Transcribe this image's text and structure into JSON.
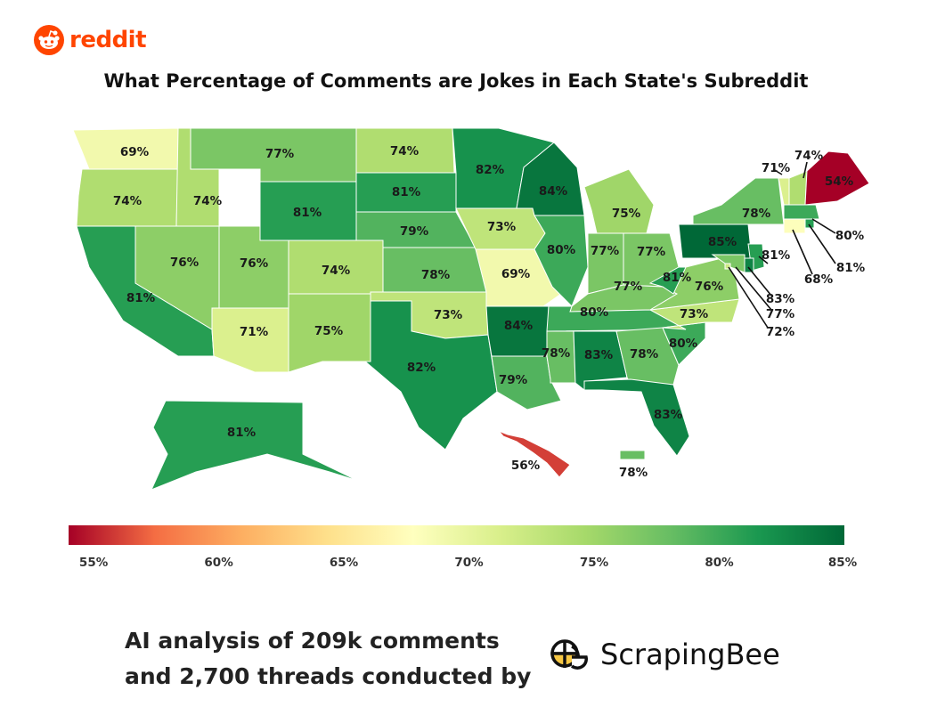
{
  "brand": {
    "name": "reddit"
  },
  "title": "What Percentage of Comments are Jokes in Each State's Subreddit",
  "chart_data": {
    "type": "choropleth",
    "title": "What Percentage of Comments are Jokes in Each State's Subreddit",
    "unit": "%",
    "scale": {
      "min": 54,
      "max": 85,
      "colors": [
        "#a50026",
        "#f46d43",
        "#fdae61",
        "#fee08b",
        "#ffffbf",
        "#d9ef8b",
        "#a6d96a",
        "#66bd63",
        "#1a9850",
        "#006837"
      ],
      "ticks": [
        "55%",
        "60%",
        "65%",
        "70%",
        "75%",
        "80%",
        "85%"
      ]
    },
    "states": [
      {
        "state": "WA",
        "value": 69
      },
      {
        "state": "OR",
        "value": 74
      },
      {
        "state": "CA",
        "value": 81
      },
      {
        "state": "ID",
        "value": 74
      },
      {
        "state": "NV",
        "value": 76
      },
      {
        "state": "UT",
        "value": 76
      },
      {
        "state": "AZ",
        "value": 71
      },
      {
        "state": "MT",
        "value": 77
      },
      {
        "state": "WY",
        "value": 81
      },
      {
        "state": "CO",
        "value": 74
      },
      {
        "state": "NM",
        "value": 75
      },
      {
        "state": "ND",
        "value": 74
      },
      {
        "state": "SD",
        "value": 81
      },
      {
        "state": "NE",
        "value": 79
      },
      {
        "state": "KS",
        "value": 78
      },
      {
        "state": "OK",
        "value": 73
      },
      {
        "state": "TX",
        "value": 82
      },
      {
        "state": "MN",
        "value": 82
      },
      {
        "state": "IA",
        "value": 73
      },
      {
        "state": "MO",
        "value": 69
      },
      {
        "state": "AR",
        "value": 84
      },
      {
        "state": "LA",
        "value": 79
      },
      {
        "state": "WI",
        "value": 84
      },
      {
        "state": "IL",
        "value": 80
      },
      {
        "state": "MI",
        "value": 75
      },
      {
        "state": "IN",
        "value": 77
      },
      {
        "state": "OH",
        "value": 77
      },
      {
        "state": "KY",
        "value": 77
      },
      {
        "state": "TN",
        "value": 80
      },
      {
        "state": "MS",
        "value": 78
      },
      {
        "state": "AL",
        "value": 83
      },
      {
        "state": "GA",
        "value": 78
      },
      {
        "state": "FL",
        "value": 83
      },
      {
        "state": "SC",
        "value": 80
      },
      {
        "state": "NC",
        "value": 73
      },
      {
        "state": "VA",
        "value": 76
      },
      {
        "state": "WV",
        "value": 81
      },
      {
        "state": "PA",
        "value": 85
      },
      {
        "state": "NY",
        "value": 78
      },
      {
        "state": "VT",
        "value": 71
      },
      {
        "state": "NH",
        "value": 74
      },
      {
        "state": "ME",
        "value": 54
      },
      {
        "state": "MA",
        "value": 80
      },
      {
        "state": "RI",
        "value": 81
      },
      {
        "state": "CT",
        "value": 68
      },
      {
        "state": "NJ",
        "value": 81
      },
      {
        "state": "DE",
        "value": 83
      },
      {
        "state": "MD",
        "value": 77
      },
      {
        "state": "DC",
        "value": 72
      },
      {
        "state": "AK",
        "value": 81
      },
      {
        "state": "HI",
        "value": 56
      },
      {
        "state": "PR",
        "value": 78
      }
    ]
  },
  "footer": {
    "line1": "AI analysis of 209k comments",
    "line2": "and 2,700 threads conducted by"
  },
  "sponsor": {
    "name": "ScrapingBee"
  }
}
